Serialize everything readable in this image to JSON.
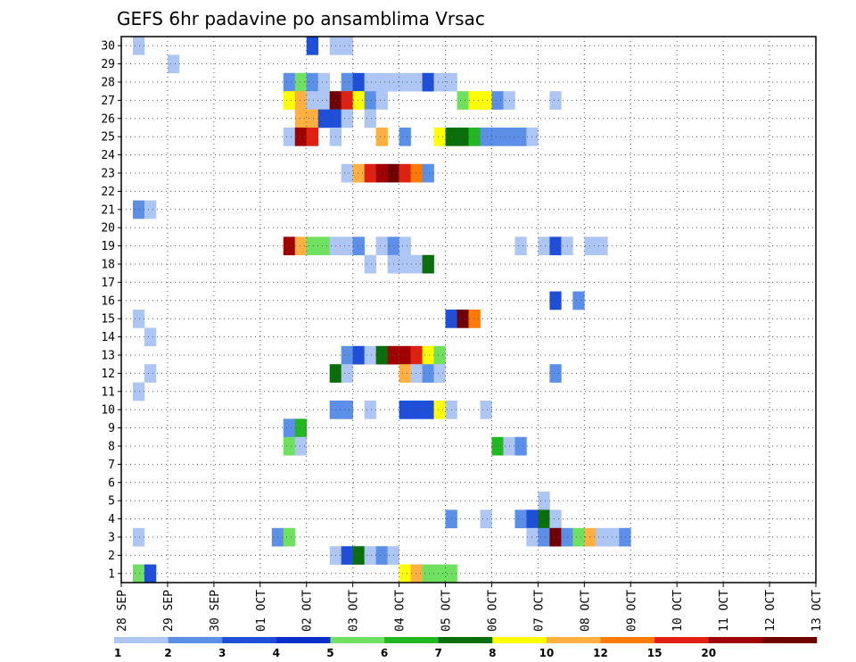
{
  "chart_data": {
    "type": "heatmap",
    "title": "GEFS 6hr padavine po ansamblima Vrsac",
    "xlabel": "",
    "ylabel": "",
    "x_tick_labels": [
      "28 SEP",
      "29 SEP",
      "30 SEP",
      "01 OCT",
      "02 OCT",
      "03 OCT",
      "04 OCT",
      "05 OCT",
      "06 OCT",
      "07 OCT",
      "08 OCT",
      "09 OCT",
      "10 OCT",
      "11 OCT",
      "12 OCT",
      "13 OCT"
    ],
    "y_tick_labels": [
      "1",
      "2",
      "3",
      "4",
      "5",
      "6",
      "7",
      "8",
      "9",
      "10",
      "11",
      "12",
      "13",
      "14",
      "15",
      "16",
      "17",
      "18",
      "19",
      "20",
      "21",
      "22",
      "23",
      "24",
      "25",
      "26",
      "27",
      "28",
      "29",
      "30"
    ],
    "members": [
      1,
      2,
      3,
      4,
      5,
      6,
      7,
      8,
      9,
      10,
      11,
      12,
      13,
      14,
      15,
      16,
      17,
      18,
      19,
      20,
      21,
      22,
      23,
      24,
      25,
      26,
      27,
      28,
      29,
      30
    ],
    "time_step_hours": 6,
    "start": "28 SEP 00Z",
    "steps": 60,
    "colorbar": {
      "labels": [
        "1",
        "2",
        "3",
        "4",
        "5",
        "6",
        "7",
        "8",
        "10",
        "12",
        "15",
        "20"
      ],
      "colors": [
        "#aec6f4",
        "#5b8fe8",
        "#1f4fd8",
        "#0a2fc8",
        "#70e060",
        "#22b822",
        "#0a6e0a",
        "#ffff00",
        "#ffb040",
        "#ff7a00",
        "#e02010",
        "#a00000",
        "#700000"
      ]
    },
    "grid": true,
    "cells": [
      [
        30,
        1,
        0
      ],
      [
        30,
        16,
        2
      ],
      [
        30,
        18,
        0
      ],
      [
        30,
        19,
        0
      ],
      [
        29,
        4,
        0
      ],
      [
        28,
        14,
        1
      ],
      [
        28,
        15,
        4
      ],
      [
        28,
        16,
        1
      ],
      [
        28,
        17,
        0
      ],
      [
        28,
        19,
        1
      ],
      [
        28,
        20,
        2
      ],
      [
        28,
        21,
        0
      ],
      [
        28,
        22,
        0
      ],
      [
        28,
        23,
        0
      ],
      [
        28,
        24,
        0
      ],
      [
        28,
        25,
        0
      ],
      [
        28,
        26,
        2
      ],
      [
        28,
        27,
        0
      ],
      [
        28,
        28,
        0
      ],
      [
        27,
        14,
        7
      ],
      [
        27,
        15,
        8
      ],
      [
        27,
        16,
        0
      ],
      [
        27,
        17,
        0
      ],
      [
        27,
        18,
        12
      ],
      [
        27,
        19,
        10
      ],
      [
        27,
        20,
        7
      ],
      [
        27,
        21,
        1
      ],
      [
        27,
        22,
        0
      ],
      [
        27,
        29,
        4
      ],
      [
        27,
        30,
        7
      ],
      [
        27,
        31,
        7
      ],
      [
        27,
        32,
        1
      ],
      [
        27,
        33,
        0
      ],
      [
        27,
        37,
        0
      ],
      [
        26,
        15,
        8
      ],
      [
        26,
        16,
        8
      ],
      [
        26,
        17,
        2
      ],
      [
        26,
        18,
        2
      ],
      [
        26,
        19,
        0
      ],
      [
        26,
        21,
        0
      ],
      [
        25,
        14,
        0
      ],
      [
        25,
        15,
        11
      ],
      [
        25,
        16,
        10
      ],
      [
        25,
        18,
        0
      ],
      [
        25,
        22,
        8
      ],
      [
        25,
        24,
        1
      ],
      [
        25,
        27,
        7
      ],
      [
        25,
        28,
        6
      ],
      [
        25,
        29,
        6
      ],
      [
        25,
        30,
        5
      ],
      [
        25,
        31,
        1
      ],
      [
        25,
        32,
        1
      ],
      [
        25,
        33,
        1
      ],
      [
        25,
        34,
        1
      ],
      [
        25,
        35,
        0
      ],
      [
        23,
        19,
        0
      ],
      [
        23,
        20,
        8
      ],
      [
        23,
        21,
        10
      ],
      [
        23,
        22,
        11
      ],
      [
        23,
        23,
        12
      ],
      [
        23,
        24,
        10
      ],
      [
        23,
        25,
        9
      ],
      [
        23,
        26,
        1
      ],
      [
        21,
        1,
        1
      ],
      [
        21,
        2,
        0
      ],
      [
        19,
        14,
        11
      ],
      [
        19,
        15,
        8
      ],
      [
        19,
        16,
        4
      ],
      [
        19,
        17,
        4
      ],
      [
        19,
        18,
        0
      ],
      [
        19,
        19,
        0
      ],
      [
        19,
        20,
        1
      ],
      [
        19,
        22,
        0
      ],
      [
        19,
        23,
        1
      ],
      [
        19,
        24,
        0
      ],
      [
        19,
        34,
        0
      ],
      [
        19,
        36,
        0
      ],
      [
        19,
        37,
        2
      ],
      [
        19,
        38,
        0
      ],
      [
        19,
        40,
        0
      ],
      [
        19,
        41,
        0
      ],
      [
        18,
        21,
        0
      ],
      [
        18,
        23,
        0
      ],
      [
        18,
        24,
        0
      ],
      [
        18,
        25,
        0
      ],
      [
        18,
        26,
        6
      ],
      [
        16,
        37,
        2
      ],
      [
        16,
        39,
        1
      ],
      [
        15,
        1,
        0
      ],
      [
        15,
        28,
        2
      ],
      [
        15,
        29,
        12
      ],
      [
        15,
        30,
        9
      ],
      [
        14,
        2,
        0
      ],
      [
        13,
        19,
        1
      ],
      [
        13,
        20,
        2
      ],
      [
        13,
        21,
        0
      ],
      [
        13,
        22,
        6
      ],
      [
        13,
        23,
        11
      ],
      [
        13,
        24,
        11
      ],
      [
        13,
        25,
        10
      ],
      [
        13,
        26,
        7
      ],
      [
        13,
        27,
        4
      ],
      [
        12,
        2,
        0
      ],
      [
        12,
        18,
        6
      ],
      [
        12,
        19,
        0
      ],
      [
        12,
        24,
        8
      ],
      [
        12,
        25,
        0
      ],
      [
        12,
        26,
        1
      ],
      [
        12,
        27,
        0
      ],
      [
        12,
        37,
        1
      ],
      [
        11,
        1,
        0
      ],
      [
        10,
        18,
        1
      ],
      [
        10,
        19,
        1
      ],
      [
        10,
        21,
        0
      ],
      [
        10,
        24,
        2
      ],
      [
        10,
        25,
        2
      ],
      [
        10,
        26,
        2
      ],
      [
        10,
        27,
        7
      ],
      [
        10,
        28,
        0
      ],
      [
        10,
        31,
        0
      ],
      [
        9,
        14,
        1
      ],
      [
        9,
        15,
        5
      ],
      [
        8,
        14,
        4
      ],
      [
        8,
        15,
        0
      ],
      [
        8,
        32,
        5
      ],
      [
        8,
        33,
        0
      ],
      [
        8,
        34,
        1
      ],
      [
        5,
        36,
        0
      ],
      [
        4,
        28,
        1
      ],
      [
        4,
        31,
        0
      ],
      [
        4,
        34,
        1
      ],
      [
        4,
        35,
        2
      ],
      [
        4,
        36,
        6
      ],
      [
        4,
        37,
        0
      ],
      [
        3,
        1,
        0
      ],
      [
        3,
        13,
        1
      ],
      [
        3,
        14,
        4
      ],
      [
        3,
        35,
        0
      ],
      [
        3,
        36,
        1
      ],
      [
        3,
        37,
        12
      ],
      [
        3,
        38,
        1
      ],
      [
        3,
        39,
        4
      ],
      [
        3,
        40,
        8
      ],
      [
        3,
        41,
        0
      ],
      [
        3,
        42,
        0
      ],
      [
        3,
        43,
        1
      ],
      [
        2,
        18,
        0
      ],
      [
        2,
        19,
        2
      ],
      [
        2,
        20,
        6
      ],
      [
        2,
        21,
        0
      ],
      [
        2,
        22,
        1
      ],
      [
        2,
        23,
        0
      ],
      [
        1,
        1,
        4
      ],
      [
        1,
        2,
        2
      ],
      [
        1,
        24,
        7
      ],
      [
        1,
        25,
        8
      ],
      [
        1,
        26,
        4
      ],
      [
        1,
        27,
        4
      ],
      [
        1,
        28,
        4
      ]
    ]
  }
}
